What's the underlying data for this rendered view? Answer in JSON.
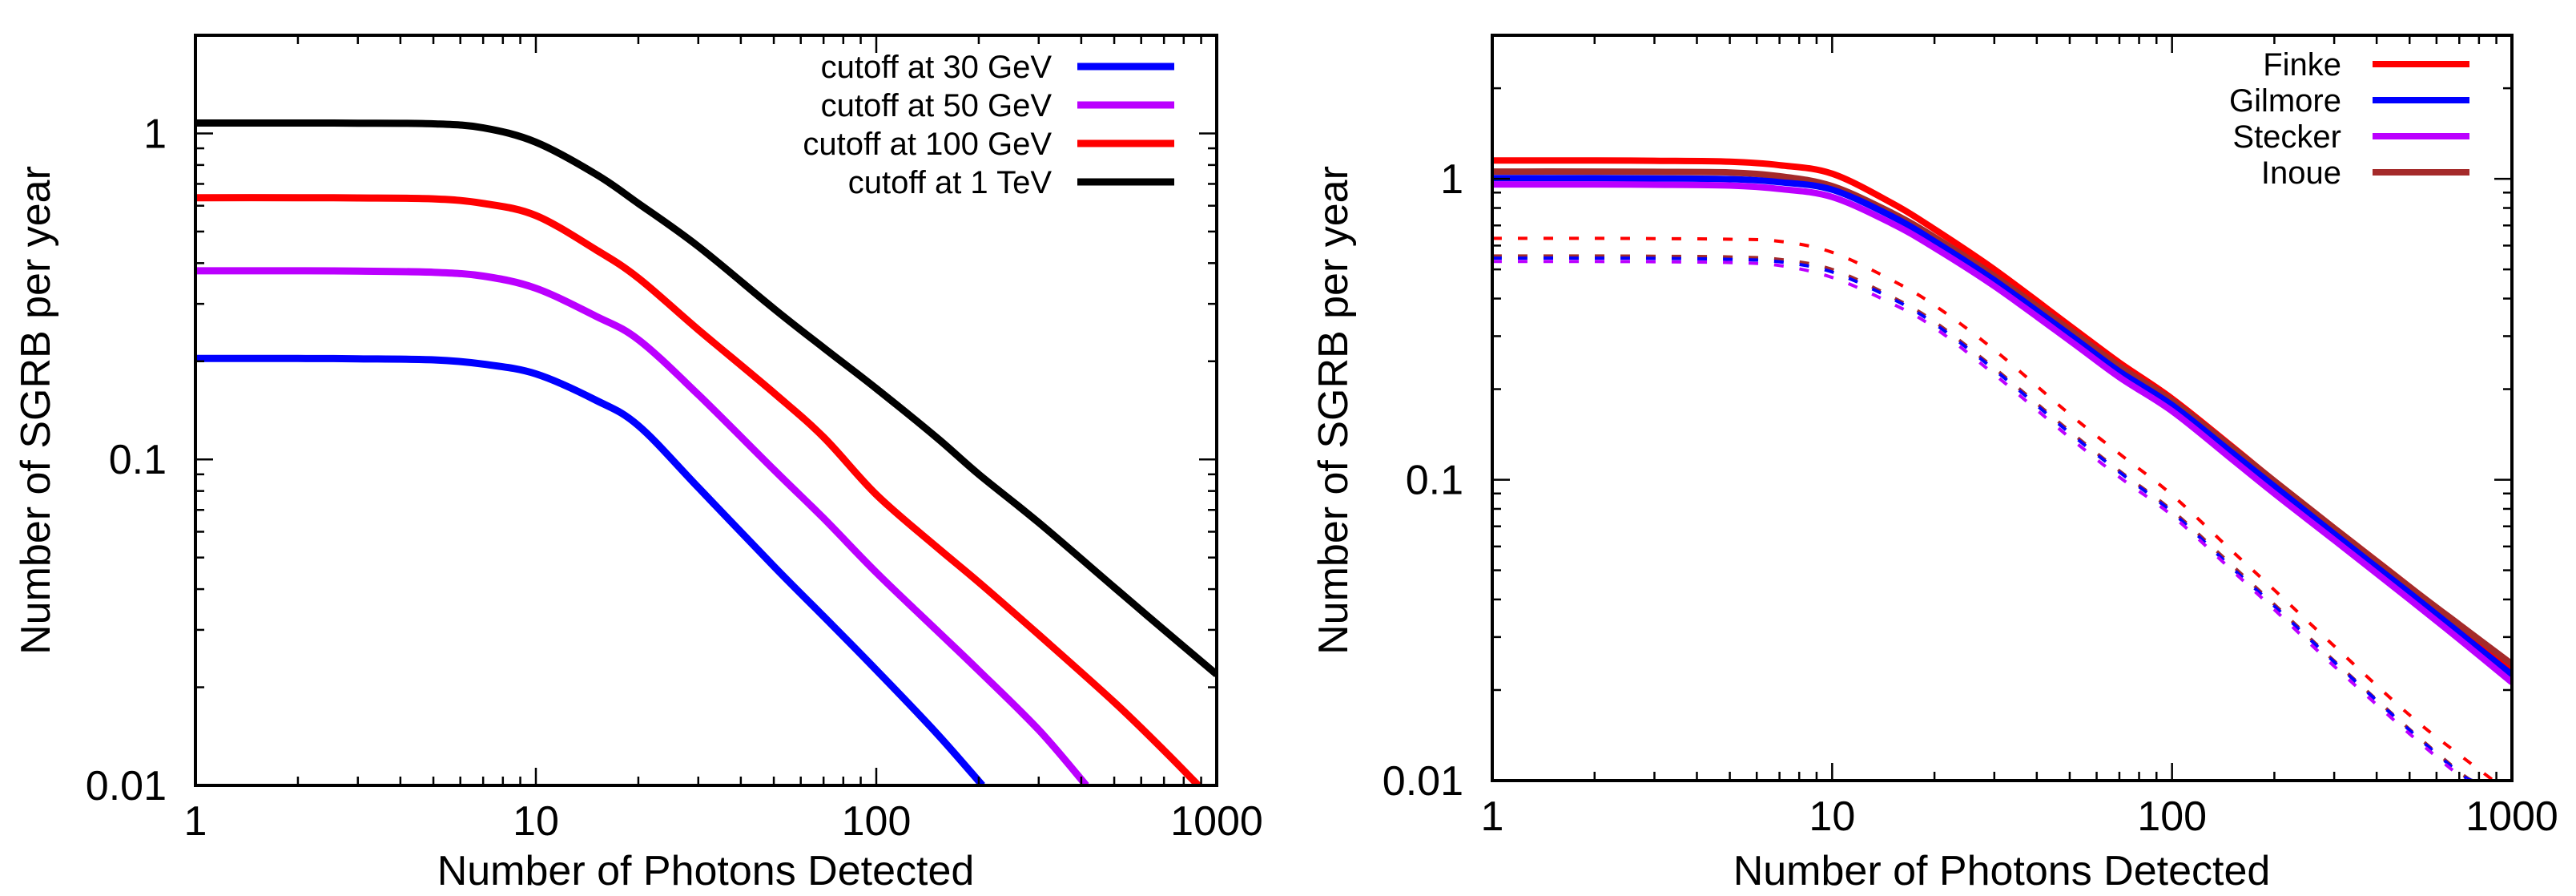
{
  "chart_data": [
    {
      "type": "line",
      "id": "cutoff-panel",
      "title": "",
      "xlabel": "Number of Photons Detected",
      "ylabel": "Number of SGRB per year",
      "xscale": "log",
      "yscale": "log",
      "xlim": [
        1,
        1000
      ],
      "ylim": [
        0.01,
        2
      ],
      "xticks": [
        1,
        10,
        100,
        1000
      ],
      "xtick_labels": [
        "1",
        "10",
        "100",
        "1000"
      ],
      "yticks": [
        0.01,
        0.1,
        1
      ],
      "ytick_labels": [
        "0.01",
        "0.1",
        "1"
      ],
      "grid": false,
      "legend_position": "top-right",
      "series": [
        {
          "name": "cutoff at 30 GeV",
          "color": "#0000ff",
          "style": "solid",
          "x": [
            1,
            2,
            3,
            5,
            7,
            10,
            15,
            20,
            30,
            50,
            70,
            100,
            150,
            205
          ],
          "y": [
            0.204,
            0.204,
            0.2035,
            0.202,
            0.196,
            0.183,
            0.152,
            0.127,
            0.082,
            0.047,
            0.033,
            0.0226,
            0.0145,
            0.01
          ]
        },
        {
          "name": "cutoff at 50 GeV",
          "color": "#bb00ff",
          "style": "solid",
          "x": [
            1,
            2,
            3,
            5,
            7,
            10,
            15,
            20,
            30,
            50,
            70,
            100,
            150,
            200,
            300,
            414
          ],
          "y": [
            0.379,
            0.379,
            0.378,
            0.375,
            0.365,
            0.335,
            0.275,
            0.233,
            0.158,
            0.093,
            0.066,
            0.045,
            0.03,
            0.0225,
            0.0148,
            0.01
          ]
        },
        {
          "name": "cutoff at 100 GeV",
          "color": "#ff0000",
          "style": "solid",
          "x": [
            1,
            2,
            3,
            5,
            7,
            10,
            15,
            20,
            30,
            50,
            70,
            100,
            150,
            200,
            300,
            500,
            700,
            883
          ],
          "y": [
            0.635,
            0.635,
            0.634,
            0.63,
            0.61,
            0.56,
            0.44,
            0.36,
            0.25,
            0.16,
            0.117,
            0.078,
            0.054,
            0.042,
            0.029,
            0.018,
            0.0128,
            0.01
          ]
        },
        {
          "name": "cutoff at 1 TeV",
          "color": "#000000",
          "style": "solid",
          "x": [
            1,
            2,
            3,
            5,
            7,
            10,
            15,
            20,
            30,
            50,
            70,
            100,
            150,
            200,
            300,
            500,
            700,
            1000
          ],
          "y": [
            1.076,
            1.076,
            1.075,
            1.07,
            1.04,
            0.94,
            0.75,
            0.61,
            0.45,
            0.29,
            0.22,
            0.165,
            0.117,
            0.09,
            0.064,
            0.0405,
            0.03,
            0.0219
          ]
        }
      ]
    },
    {
      "type": "line",
      "id": "ebl-panel",
      "title": "",
      "xlabel": "Number of Photons Detected",
      "ylabel": "Number of SGRB per year",
      "xscale": "log",
      "yscale": "log",
      "xlim": [
        1,
        1000
      ],
      "ylim": [
        0.01,
        3
      ],
      "xticks": [
        1,
        10,
        100,
        1000
      ],
      "xtick_labels": [
        "1",
        "10",
        "100",
        "1000"
      ],
      "yticks": [
        0.01,
        0.1,
        1
      ],
      "ytick_labels": [
        "0.01",
        "0.1",
        "1"
      ],
      "grid": false,
      "legend_position": "top-right",
      "legend": [
        {
          "name": "Finke",
          "color": "#ff0000"
        },
        {
          "name": "Gilmore",
          "color": "#0000ff"
        },
        {
          "name": "Stecker",
          "color": "#bb00ff"
        },
        {
          "name": "Inoue",
          "color": "#a52a2a"
        }
      ],
      "series": [
        {
          "name": "Finke",
          "color": "#ff0000",
          "style": "solid",
          "x": [
            1,
            2,
            3,
            5,
            7,
            10,
            15,
            20,
            30,
            50,
            70,
            100,
            150,
            200,
            300,
            500,
            700,
            1000
          ],
          "y": [
            1.15,
            1.15,
            1.148,
            1.14,
            1.11,
            1.04,
            0.83,
            0.68,
            0.5,
            0.325,
            0.245,
            0.186,
            0.129,
            0.099,
            0.069,
            0.044,
            0.032,
            0.0238
          ]
        },
        {
          "name": "Inoue",
          "color": "#a52a2a",
          "style": "solid",
          "x": [
            1,
            2,
            3,
            5,
            7,
            10,
            15,
            20,
            30,
            50,
            70,
            100,
            150,
            200,
            300,
            500,
            700,
            1000
          ],
          "y": [
            1.057,
            1.057,
            1.055,
            1.05,
            1.02,
            0.946,
            0.77,
            0.64,
            0.475,
            0.315,
            0.238,
            0.183,
            0.128,
            0.099,
            0.069,
            0.044,
            0.033,
            0.0244
          ]
        },
        {
          "name": "Gilmore",
          "color": "#0000ff",
          "style": "solid",
          "x": [
            1,
            2,
            3,
            5,
            7,
            10,
            15,
            20,
            30,
            50,
            70,
            100,
            150,
            200,
            300,
            500,
            700,
            1000
          ],
          "y": [
            1.005,
            1.005,
            1.003,
            0.998,
            0.975,
            0.92,
            0.75,
            0.62,
            0.46,
            0.303,
            0.229,
            0.177,
            0.123,
            0.095,
            0.066,
            0.042,
            0.031,
            0.0225
          ]
        },
        {
          "name": "Stecker",
          "color": "#bb00ff",
          "style": "solid",
          "x": [
            1,
            2,
            3,
            5,
            7,
            10,
            15,
            20,
            30,
            50,
            70,
            100,
            150,
            200,
            300,
            500,
            700,
            1000
          ],
          "y": [
            0.958,
            0.958,
            0.956,
            0.95,
            0.925,
            0.87,
            0.71,
            0.59,
            0.44,
            0.29,
            0.219,
            0.169,
            0.117,
            0.09,
            0.063,
            0.04,
            0.0295,
            0.0212
          ]
        },
        {
          "name": "Finke (dashed)",
          "color": "#ff0000",
          "style": "dashed",
          "x": [
            1,
            2,
            3,
            5,
            7,
            10,
            15,
            20,
            30,
            50,
            70,
            100,
            150,
            200,
            300,
            500,
            700,
            883
          ],
          "y": [
            0.634,
            0.634,
            0.633,
            0.63,
            0.62,
            0.57,
            0.46,
            0.38,
            0.27,
            0.165,
            0.122,
            0.089,
            0.058,
            0.043,
            0.028,
            0.0165,
            0.0122,
            0.01
          ]
        },
        {
          "name": "Inoue (dashed)",
          "color": "#a52a2a",
          "style": "dashed",
          "x": [
            1,
            2,
            3,
            5,
            7,
            10,
            15,
            20,
            30,
            50,
            70,
            100,
            150,
            200,
            300,
            500,
            700,
            762
          ],
          "y": [
            0.554,
            0.554,
            0.553,
            0.55,
            0.54,
            0.5,
            0.405,
            0.335,
            0.235,
            0.145,
            0.107,
            0.079,
            0.052,
            0.0385,
            0.025,
            0.0148,
            0.0107,
            0.01
          ]
        },
        {
          "name": "Gilmore (dashed)",
          "color": "#0000ff",
          "style": "dashed",
          "x": [
            1,
            2,
            3,
            5,
            7,
            10,
            15,
            20,
            30,
            50,
            70,
            100,
            150,
            200,
            300,
            500,
            700,
            765
          ],
          "y": [
            0.545,
            0.545,
            0.544,
            0.54,
            0.53,
            0.49,
            0.4,
            0.33,
            0.232,
            0.143,
            0.106,
            0.078,
            0.051,
            0.038,
            0.0248,
            0.0147,
            0.0106,
            0.01
          ]
        },
        {
          "name": "Stecker (dashed)",
          "color": "#bb00ff",
          "style": "dashed",
          "x": [
            1,
            2,
            3,
            5,
            7,
            10,
            15,
            20,
            30,
            50,
            70,
            100,
            150,
            200,
            300,
            500,
            700,
            750
          ],
          "y": [
            0.531,
            0.531,
            0.53,
            0.527,
            0.515,
            0.47,
            0.385,
            0.32,
            0.224,
            0.138,
            0.102,
            0.076,
            0.05,
            0.037,
            0.024,
            0.0143,
            0.0104,
            0.01
          ]
        }
      ]
    }
  ]
}
